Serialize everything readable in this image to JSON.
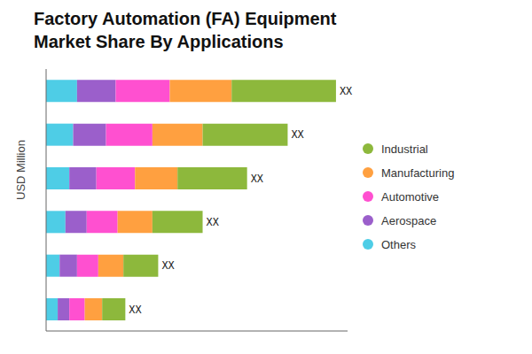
{
  "chart_data": {
    "type": "bar",
    "title": "Factory Automation (FA) Equipment\nMarket Share By Applications",
    "ylabel": "USD Million",
    "orientation": "horizontal",
    "stacked": true,
    "categories": [
      null,
      null,
      null,
      null,
      null,
      null
    ],
    "series": [
      {
        "name": "Others",
        "color": "#4ECDE6",
        "values": [
          8,
          7,
          6,
          5,
          3.5,
          3
        ]
      },
      {
        "name": "Aerospace",
        "color": "#9B5FCB",
        "values": [
          10,
          8.5,
          7,
          5.5,
          4.5,
          3
        ]
      },
      {
        "name": "Automotive",
        "color": "#FF50D0",
        "values": [
          14,
          12,
          10,
          8,
          5.5,
          4
        ]
      },
      {
        "name": "Manufacturing",
        "color": "#FFA040",
        "values": [
          16,
          13,
          11,
          9,
          6.5,
          4.5
        ]
      },
      {
        "name": "Industrial",
        "color": "#8DB83C",
        "values": [
          27,
          22,
          18,
          13,
          9,
          6
        ]
      }
    ],
    "xlim": [
      0,
      78
    ],
    "annotations": [
      "XX",
      "XX",
      "XX",
      "XX",
      "XX",
      "XX"
    ],
    "tick_labels": false,
    "grid": false,
    "legend": "right"
  }
}
